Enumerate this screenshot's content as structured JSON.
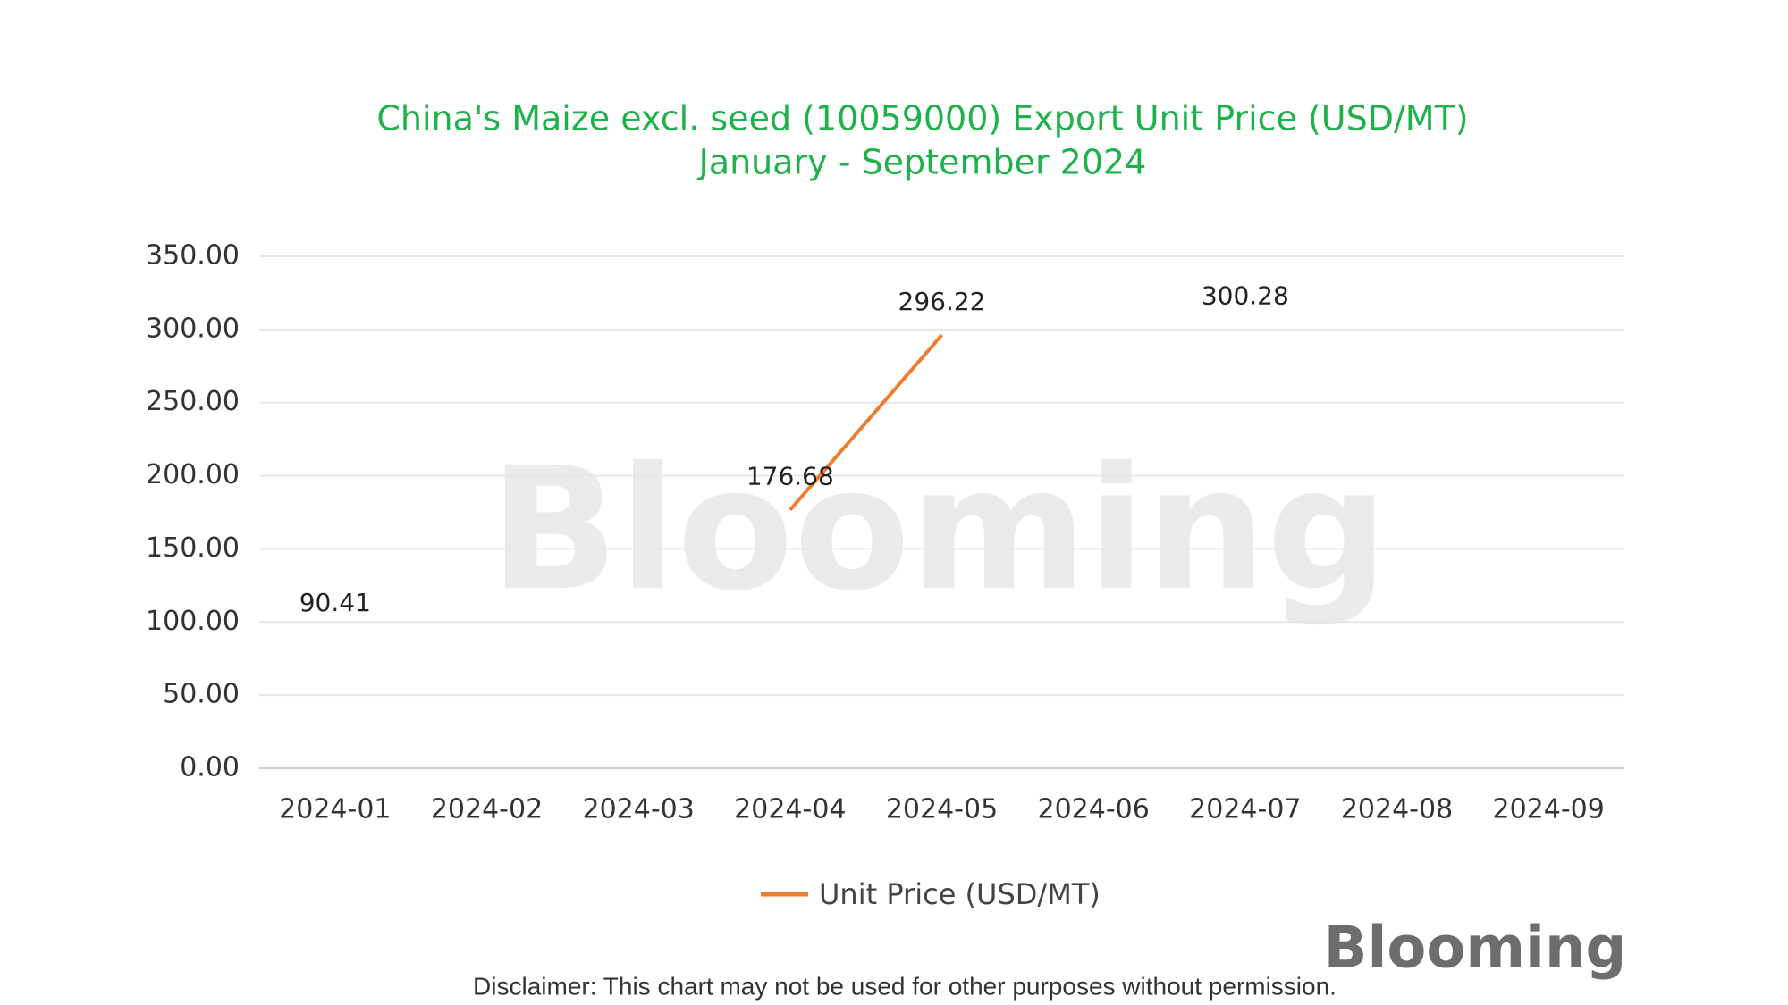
{
  "chart_data": {
    "type": "line",
    "title": "China's Maize excl. seed (10059000) Export Unit Price (USD/MT)",
    "subtitle": "January - September 2024",
    "categories": [
      "2024-01",
      "2024-02",
      "2024-03",
      "2024-04",
      "2024-05",
      "2024-06",
      "2024-07",
      "2024-08",
      "2024-09"
    ],
    "series": [
      {
        "name": "Unit Price (USD/MT)",
        "color": "#ed7d31",
        "values": [
          90.41,
          null,
          null,
          176.68,
          296.22,
          null,
          300.28,
          null,
          null
        ]
      }
    ],
    "ylim": [
      0,
      350
    ],
    "yticks": [
      {
        "value": 0,
        "label": "0.00"
      },
      {
        "value": 50,
        "label": "50.00"
      },
      {
        "value": 100,
        "label": "100.00"
      },
      {
        "value": 150,
        "label": "150.00"
      },
      {
        "value": 200,
        "label": "200.00"
      },
      {
        "value": 250,
        "label": "250.00"
      },
      {
        "value": 300,
        "label": "300.00"
      },
      {
        "value": 350,
        "label": "350.00"
      }
    ],
    "grid": true,
    "legend": "bottom"
  },
  "watermark": "Blooming",
  "logo": "Blooming",
  "disclaimer": "Disclaimer: This chart may not be used for other purposes without permission."
}
